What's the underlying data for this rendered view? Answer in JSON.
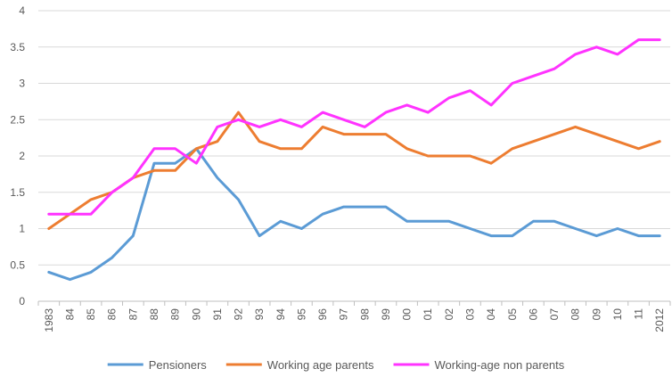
{
  "chart_data": {
    "type": "line",
    "title": "",
    "xlabel": "",
    "ylabel": "",
    "ylim": [
      0,
      4
    ],
    "yticks": [
      "0",
      "0.5",
      "1",
      "1.5",
      "2",
      "2.5",
      "3",
      "3.5",
      "4"
    ],
    "grid": "horizontal",
    "legend_position": "bottom",
    "categories": [
      "1983",
      "84",
      "85",
      "86",
      "87",
      "88",
      "89",
      "90",
      "91",
      "92",
      "93",
      "94",
      "95",
      "96",
      "97",
      "98",
      "99",
      "00",
      "01",
      "02",
      "03",
      "04",
      "05",
      "06",
      "07",
      "08",
      "09",
      "10",
      "11",
      "2012"
    ],
    "series": [
      {
        "name": "Pensioners",
        "color": "#5b9bd5",
        "values": [
          0.4,
          0.3,
          0.4,
          0.6,
          0.9,
          1.9,
          1.9,
          2.1,
          1.7,
          1.4,
          0.9,
          1.1,
          1.0,
          1.2,
          1.3,
          1.3,
          1.3,
          1.1,
          1.1,
          1.1,
          1.0,
          0.9,
          0.9,
          1.1,
          1.1,
          1.0,
          0.9,
          1.0,
          0.9,
          0.9
        ]
      },
      {
        "name": "Working age parents",
        "color": "#ed7d31",
        "values": [
          1.0,
          1.2,
          1.4,
          1.5,
          1.7,
          1.8,
          1.8,
          2.1,
          2.2,
          2.6,
          2.2,
          2.1,
          2.1,
          2.4,
          2.3,
          2.3,
          2.3,
          2.1,
          2.0,
          2.0,
          2.0,
          1.9,
          2.1,
          2.2,
          2.3,
          2.4,
          2.3,
          2.2,
          2.1,
          2.2
        ]
      },
      {
        "name": "Working-age non parents",
        "color": "#ff33ff",
        "values": [
          1.2,
          1.2,
          1.2,
          1.5,
          1.7,
          2.1,
          2.1,
          1.9,
          2.4,
          2.5,
          2.4,
          2.5,
          2.4,
          2.6,
          2.5,
          2.4,
          2.6,
          2.7,
          2.6,
          2.8,
          2.9,
          2.7,
          3.0,
          3.1,
          3.2,
          3.4,
          3.5,
          3.4,
          3.6,
          3.6
        ]
      }
    ]
  }
}
